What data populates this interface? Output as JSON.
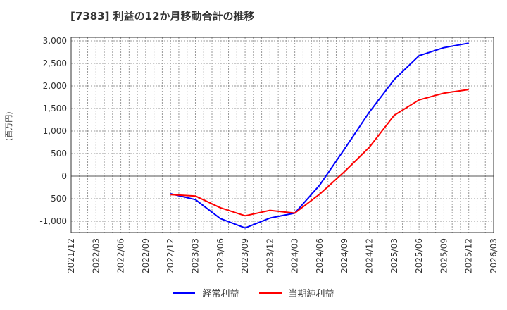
{
  "header": {
    "title": "[7383]  利益の12か月移動合計の推移"
  },
  "axis": {
    "ylabel": "(百万円)"
  },
  "legend": [
    {
      "label": "経常利益",
      "color": "#0000ff"
    },
    {
      "label": "当期純利益",
      "color": "#ff0000"
    }
  ],
  "chart_data": {
    "type": "line",
    "title": "[7383]  利益の12か月移動合計の推移",
    "xlabel": "",
    "ylabel": "(百万円)",
    "ylim": [
      -1250,
      3050
    ],
    "yticks": [
      3000,
      2500,
      2000,
      1500,
      1000,
      500,
      0,
      -500,
      -1000
    ],
    "ytick_labels": [
      "3,000",
      "2,500",
      "2,000",
      "1,500",
      "1,000",
      "500",
      "0",
      "-500",
      "-1,000"
    ],
    "xtick_labels": [
      "2021/12",
      "2022/03",
      "2022/06",
      "2022/09",
      "2022/12",
      "2023/03",
      "2023/06",
      "2023/09",
      "2023/12",
      "2024/03",
      "2024/06",
      "2024/09",
      "2024/12",
      "2025/03",
      "2025/06",
      "2025/09",
      "2025/12",
      "2026/03"
    ],
    "grid": true,
    "legend_position": "bottom",
    "x": [
      "2022/12",
      "2023/03",
      "2023/06",
      "2023/09",
      "2023/12",
      "2024/03",
      "2024/06",
      "2024/09",
      "2024/12",
      "2025/03",
      "2025/06",
      "2025/09",
      "2025/12"
    ],
    "series": [
      {
        "name": "経常利益",
        "color": "#0000ff",
        "values": [
          -390,
          -520,
          -940,
          -1150,
          -930,
          -820,
          -200,
          600,
          1420,
          2140,
          2670,
          2850,
          2950
        ]
      },
      {
        "name": "当期純利益",
        "color": "#ff0000",
        "values": [
          -410,
          -440,
          -700,
          -880,
          -760,
          -820,
          -400,
          100,
          640,
          1350,
          1690,
          1840,
          1920
        ]
      }
    ]
  }
}
